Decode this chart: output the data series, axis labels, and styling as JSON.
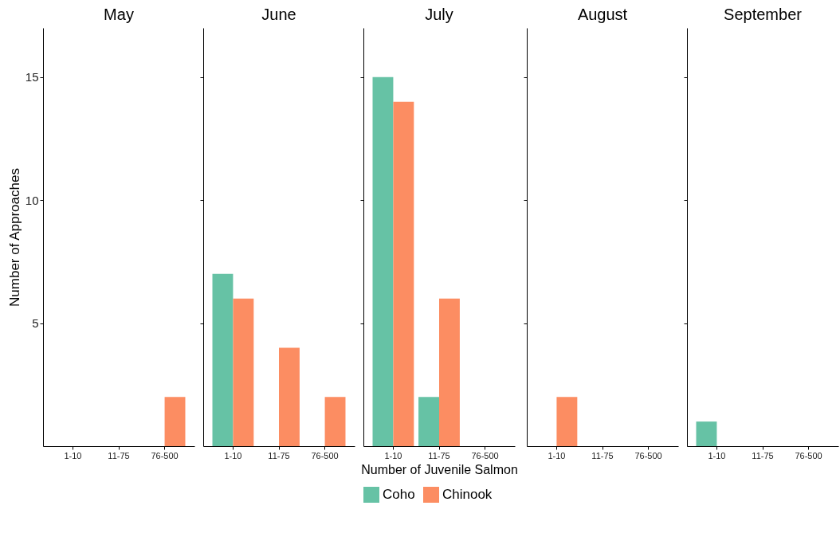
{
  "chart_data": [
    {
      "type": "bar",
      "title": "May",
      "ylabel": "Number of Approaches",
      "categories": [
        "1-10",
        "11-75",
        "76-500"
      ],
      "ylim": [
        0,
        17
      ],
      "yticks": [
        5,
        10,
        15
      ],
      "series": [
        {
          "color": "#66c2a5",
          "values": [
            0,
            0,
            0
          ]
        },
        {
          "color": "#fc8d62",
          "values": [
            0,
            0,
            2
          ]
        }
      ]
    },
    {
      "type": "bar",
      "title": "June",
      "categories": [
        "1-10",
        "11-75",
        "76-500"
      ],
      "ylim": [
        0,
        17
      ],
      "yticks": [
        5,
        10,
        15
      ],
      "tick_labels": "x",
      "series": [
        {
          "color": "#66c2a5",
          "values": [
            7,
            0,
            0
          ]
        },
        {
          "color": "#fc8d62",
          "values": [
            6,
            4,
            2
          ]
        }
      ]
    },
    {
      "type": "bar",
      "title": "July",
      "xlabel": "Number of Juvenile Salmon",
      "legend": "bottom",
      "categories": [
        "1-10",
        "11-75",
        "76-500"
      ],
      "ylim": [
        0,
        17
      ],
      "yticks": [
        5,
        10,
        15
      ],
      "tick_labels": "x",
      "series": [
        {
          "name": "Coho",
          "color": "#66c2a5",
          "values": [
            15,
            2,
            0
          ]
        },
        {
          "name": "Chinook",
          "color": "#fc8d62",
          "values": [
            14,
            6,
            0
          ]
        }
      ]
    },
    {
      "type": "bar",
      "title": "August",
      "categories": [
        "1-10",
        "11-75",
        "76-500"
      ],
      "ylim": [
        0,
        17
      ],
      "yticks": [
        5,
        10,
        15
      ],
      "tick_labels": "x",
      "series": [
        {
          "color": "#66c2a5",
          "values": [
            0,
            0,
            0
          ]
        },
        {
          "color": "#fc8d62",
          "values": [
            2,
            0,
            0
          ]
        }
      ]
    },
    {
      "type": "bar",
      "title": "September",
      "categories": [
        "1-10",
        "11-75",
        "76-500"
      ],
      "ylim": [
        0,
        17
      ],
      "yticks": [
        5,
        10,
        15
      ],
      "tick_labels": "x",
      "series": [
        {
          "color": "#66c2a5",
          "values": [
            1,
            0,
            0
          ]
        },
        {
          "color": "#fc8d62",
          "values": [
            0,
            0,
            0
          ]
        }
      ]
    }
  ]
}
